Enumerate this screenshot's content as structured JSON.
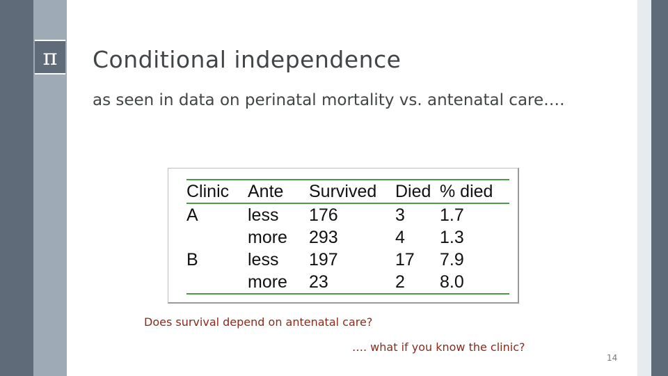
{
  "logo": {
    "symbol": "π"
  },
  "title": "Conditional  independence",
  "subtitle": "as seen in data on perinatal mortality vs. antenatal care….",
  "table": {
    "headers": [
      "Clinic",
      "Ante",
      "Survived",
      "Died",
      "% died"
    ],
    "rows": [
      [
        "A",
        "less",
        "176",
        "3",
        "1.7"
      ],
      [
        "",
        "more",
        "293",
        "4",
        "1.3"
      ],
      [
        "B",
        "less",
        "197",
        "17",
        "7.9"
      ],
      [
        "",
        "more",
        "23",
        "2",
        "8.0"
      ]
    ]
  },
  "question": "Does survival depend on antenatal care?",
  "followup": "…. what if you know the clinic?",
  "page_number": "14",
  "colors": {
    "sidebar_dark": "#5f6b78",
    "sidebar_light": "#9eabb7",
    "rule_green": "#4a9a4a",
    "question_text": "#8b2a1a"
  }
}
